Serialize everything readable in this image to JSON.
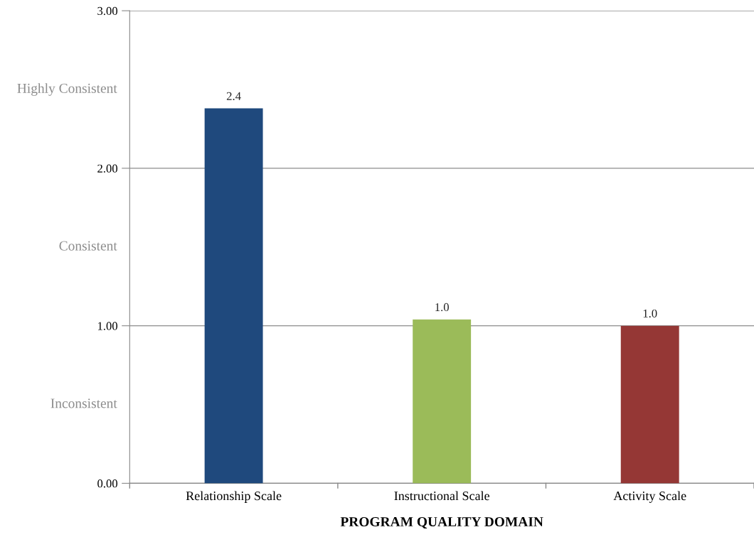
{
  "chart_data": {
    "type": "bar",
    "xlabel": "PROGRAM QUALITY DOMAIN",
    "categories": [
      "Relationship Scale",
      "Instructional Scale",
      "Activity Scale"
    ],
    "values": [
      2.38,
      1.04,
      1.0
    ],
    "value_labels": [
      "2.4",
      "1.0",
      "1.0"
    ],
    "colors": [
      "#1f497d",
      "#9bbb59",
      "#953735"
    ],
    "ylim": [
      0,
      3
    ],
    "yticks": [
      {
        "value": 0,
        "label": "0.00"
      },
      {
        "value": 1,
        "label": "1.00"
      },
      {
        "value": 2,
        "label": "2.00"
      },
      {
        "value": 3,
        "label": "3.00"
      }
    ],
    "annotations": [
      "Inconsistent",
      "Consistent",
      "Highly Consistent"
    ],
    "grid": "y",
    "legend": false
  }
}
